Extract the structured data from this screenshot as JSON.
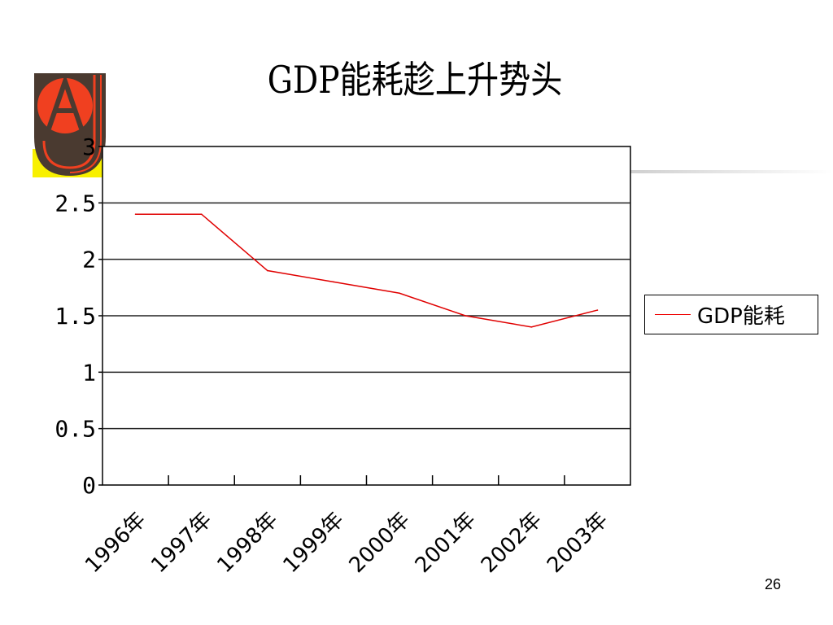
{
  "slide": {
    "title": "GDP能耗趁上升势头",
    "page_number": "26"
  },
  "colors": {
    "series": "#e00000",
    "logo_red": "#f04020",
    "logo_dark": "#4a3a30",
    "logo_yellow": "#f8f000"
  },
  "chart_data": {
    "type": "line",
    "title": "",
    "categories": [
      "1996年",
      "1997年",
      "1998年",
      "1999年",
      "2000年",
      "2001年",
      "2002年",
      "2003年"
    ],
    "series": [
      {
        "name": "GDP能耗",
        "values": [
          2.4,
          2.4,
          1.9,
          1.8,
          1.7,
          1.5,
          1.4,
          1.55
        ]
      }
    ],
    "ylim": [
      0,
      3
    ],
    "yticks": [
      0,
      0.5,
      1,
      1.5,
      2,
      2.5,
      3
    ],
    "ytick_labels": [
      "0",
      "0.5",
      "1",
      "1.5",
      "2",
      "2.5",
      "3"
    ],
    "xlabel": "",
    "ylabel": "",
    "grid": true,
    "legend": "right"
  }
}
